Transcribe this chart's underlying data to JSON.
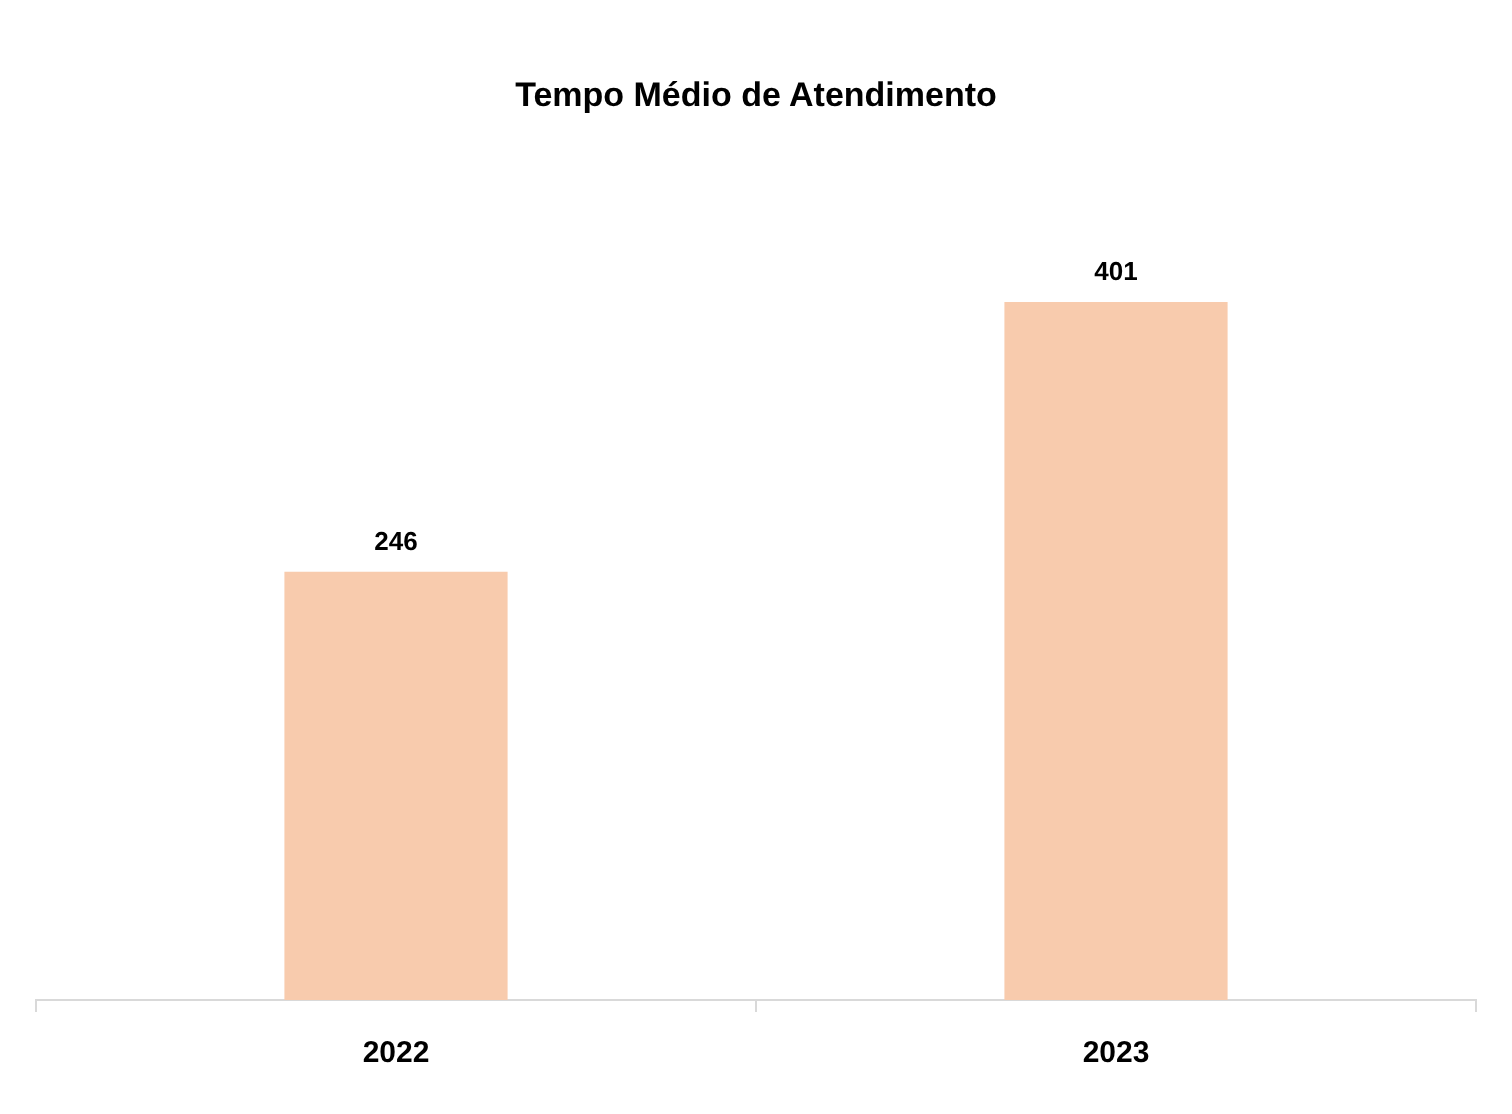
{
  "chart_data": {
    "type": "bar",
    "title": "Tempo Médio de Atendimento",
    "categories": [
      "2022",
      "2023"
    ],
    "values": [
      246,
      401
    ],
    "color": "#f8cbad",
    "data_labels": true,
    "grid": false,
    "legend": false
  }
}
